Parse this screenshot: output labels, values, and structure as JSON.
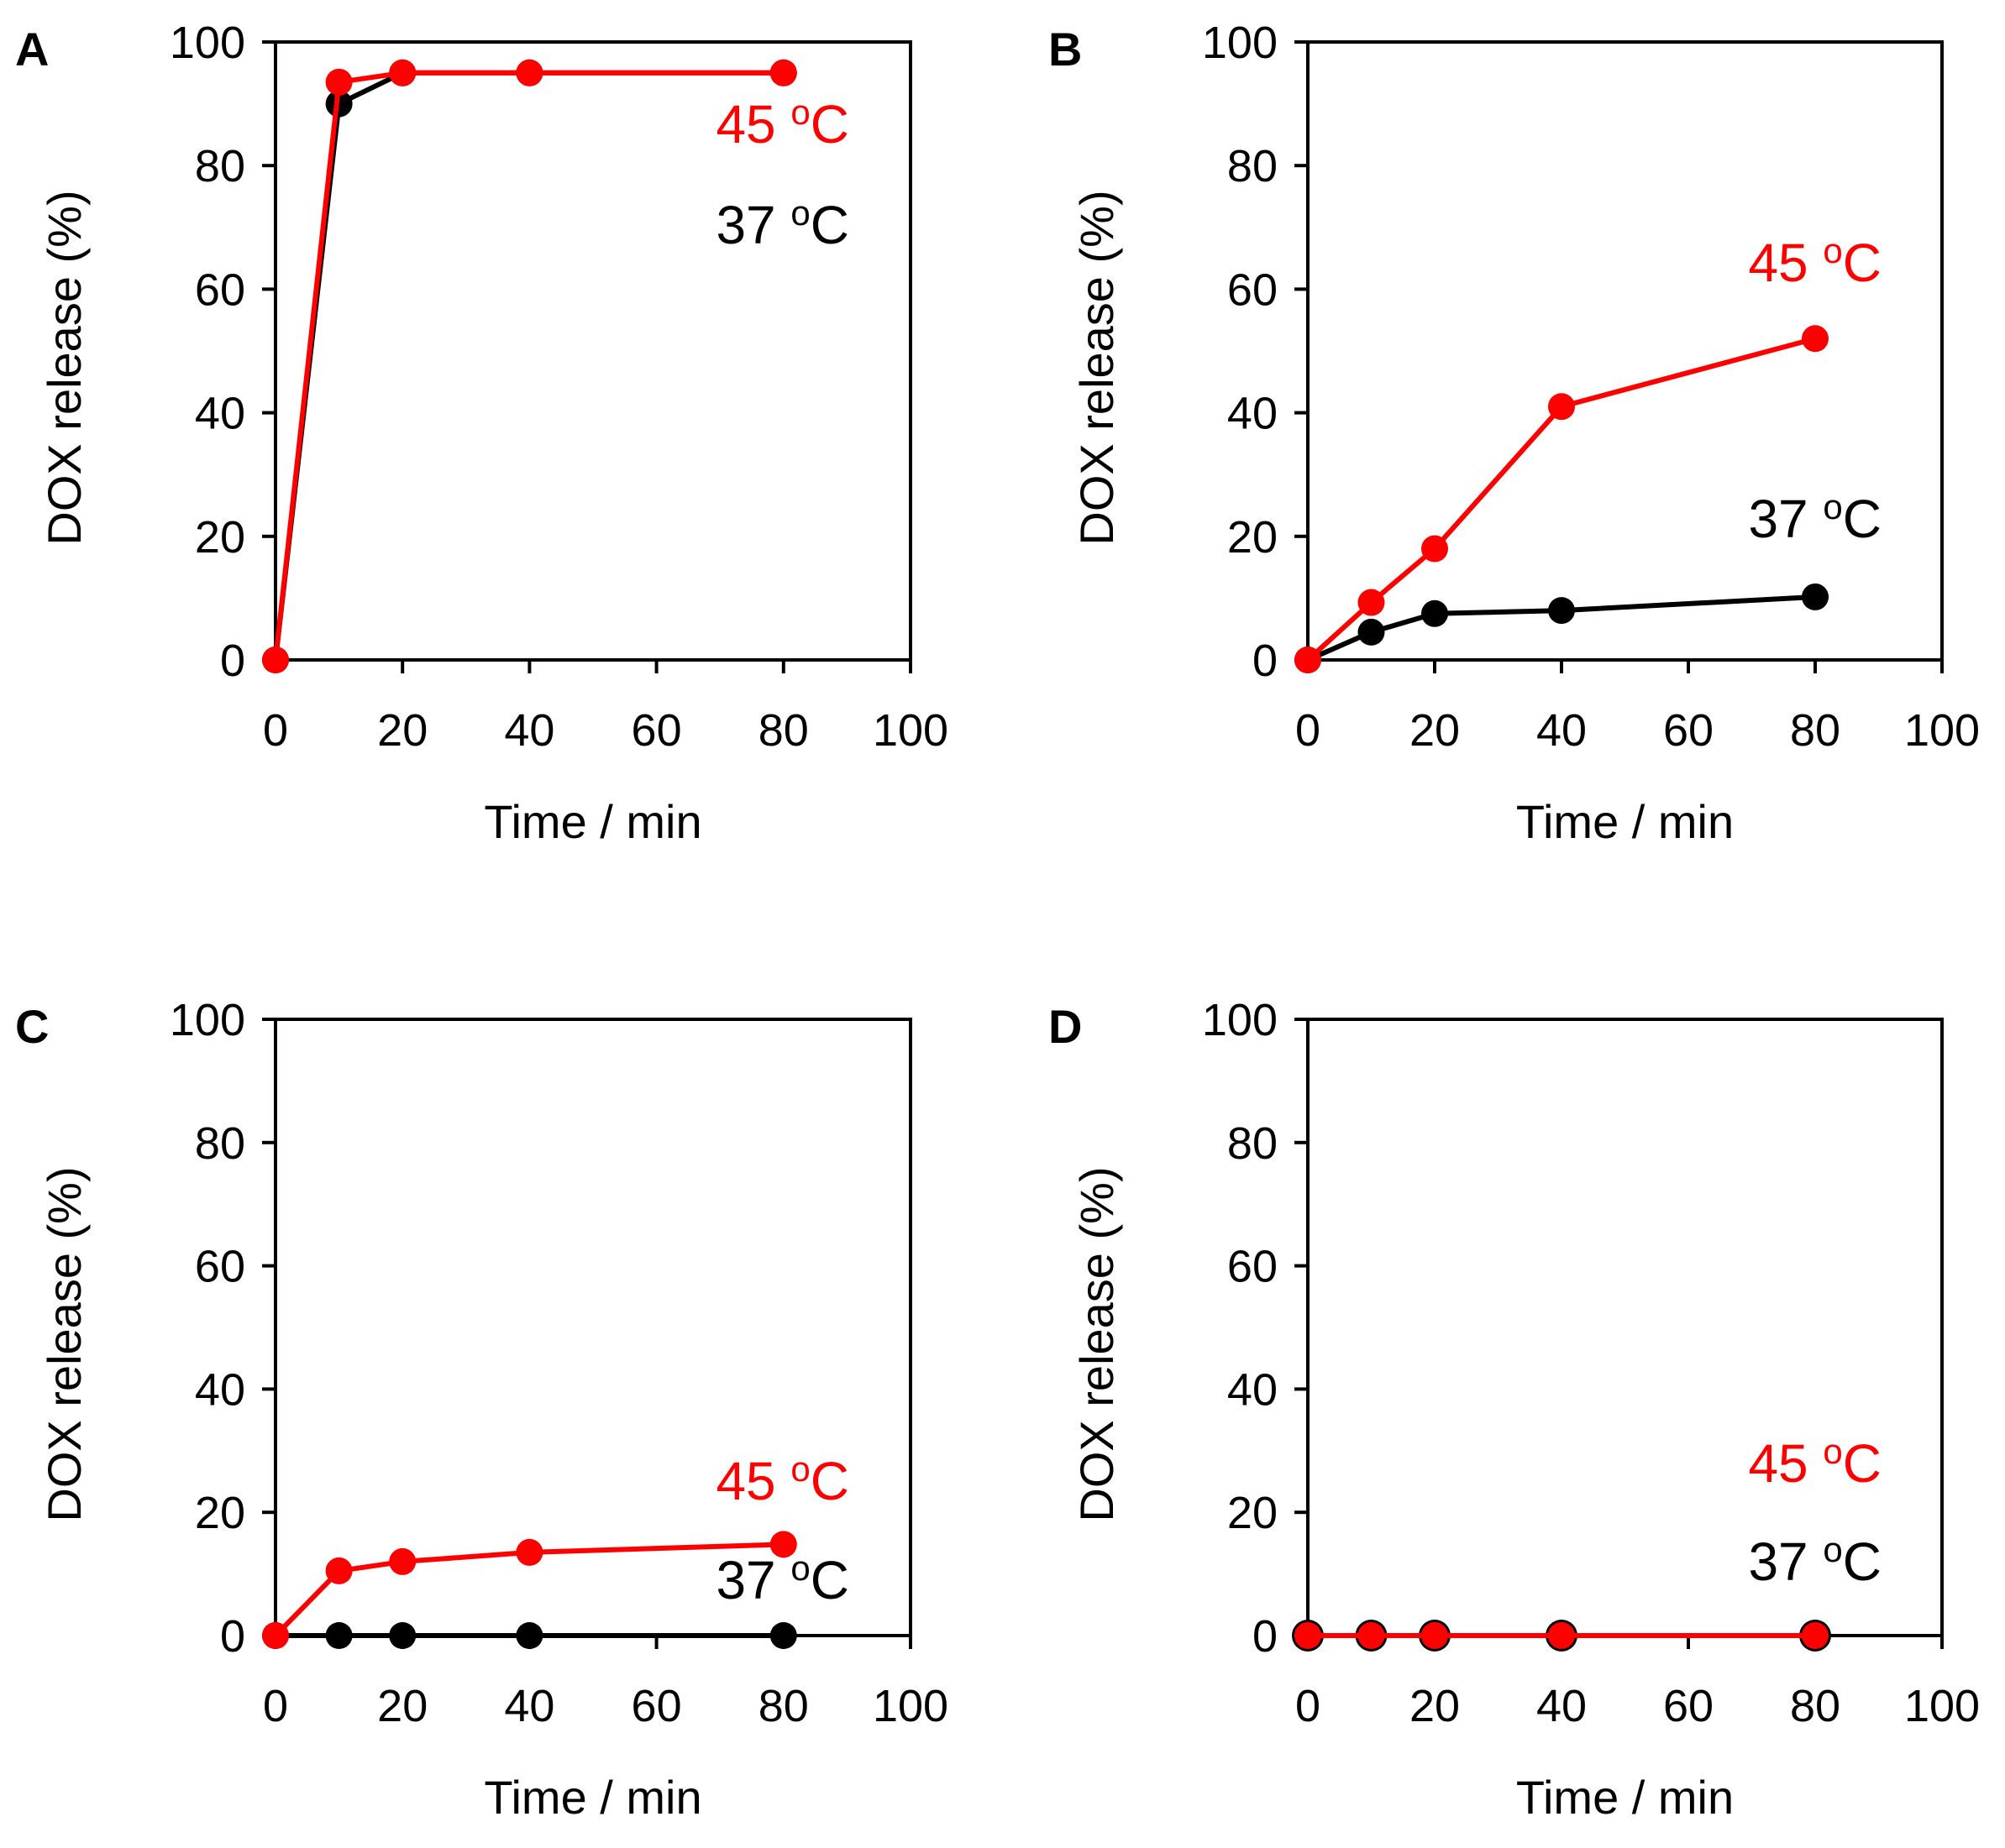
{
  "colors": {
    "series_45": "#ff0000",
    "series_37": "#000000",
    "axis": "#000000"
  },
  "chart_data": [
    {
      "type": "line",
      "panel": "A",
      "xlabel": "Time / min",
      "ylabel": "DOX release  (%)",
      "xlim": [
        0,
        100
      ],
      "ylim": [
        0,
        100
      ],
      "xticks": [
        0,
        20,
        40,
        60,
        80,
        100
      ],
      "yticks": [
        0,
        20,
        40,
        60,
        80,
        100
      ],
      "x": [
        0,
        10,
        20,
        40,
        80
      ],
      "series": [
        {
          "name": "37 oC",
          "label_main": "37 o",
          "label_sup": "o",
          "label_text": "37 ",
          "label_unit": "C",
          "values": [
            0,
            90,
            95,
            95,
            95
          ]
        },
        {
          "name": "45 oC",
          "label_text": "45 ",
          "label_sup": "o",
          "label_unit": "C",
          "values": [
            0,
            93.5,
            95,
            95,
            95
          ]
        }
      ]
    },
    {
      "type": "line",
      "panel": "B",
      "xlabel": "Time / min",
      "ylabel": "DOX release  (%)",
      "xlim": [
        0,
        100
      ],
      "ylim": [
        0,
        100
      ],
      "xticks": [
        0,
        20,
        40,
        60,
        80,
        100
      ],
      "yticks": [
        0,
        20,
        40,
        60,
        80,
        100
      ],
      "x": [
        0,
        10,
        20,
        40,
        80
      ],
      "series": [
        {
          "name": "37 oC",
          "label_text": "37 ",
          "label_sup": "o",
          "label_unit": "C",
          "values": [
            0,
            4.5,
            7.5,
            8,
            10.2
          ]
        },
        {
          "name": "45 oC",
          "label_text": "45 ",
          "label_sup": "o",
          "label_unit": "C",
          "values": [
            0,
            9.3,
            18,
            41,
            52
          ]
        }
      ]
    },
    {
      "type": "line",
      "panel": "C",
      "xlabel": "Time / min",
      "ylabel": "DOX release  (%)",
      "xlim": [
        0,
        100
      ],
      "ylim": [
        0,
        100
      ],
      "xticks": [
        0,
        20,
        40,
        60,
        80,
        100
      ],
      "yticks": [
        0,
        20,
        40,
        60,
        80,
        100
      ],
      "x": [
        0,
        10,
        20,
        40,
        80
      ],
      "series": [
        {
          "name": "37 oC",
          "label_text": "37 ",
          "label_sup": "o",
          "label_unit": "C",
          "values": [
            0,
            0,
            0,
            0,
            0
          ]
        },
        {
          "name": "45 oC",
          "label_text": "45 ",
          "label_sup": "o",
          "label_unit": "C",
          "values": [
            0,
            10.5,
            12,
            13.5,
            14.8
          ]
        }
      ]
    },
    {
      "type": "line",
      "panel": "D",
      "xlabel": "Time / min",
      "ylabel": "DOX release  (%)",
      "xlim": [
        0,
        100
      ],
      "ylim": [
        0,
        100
      ],
      "xticks": [
        0,
        20,
        40,
        60,
        80,
        100
      ],
      "yticks": [
        0,
        20,
        40,
        60,
        80,
        100
      ],
      "x": [
        0,
        10,
        20,
        40,
        80
      ],
      "series": [
        {
          "name": "37 oC",
          "label_text": "37 ",
          "label_sup": "o",
          "label_unit": "C",
          "values": [
            0,
            0,
            0,
            0,
            0
          ]
        },
        {
          "name": "45 oC",
          "label_text": "45 ",
          "label_sup": "o",
          "label_unit": "C",
          "values": [
            0,
            0,
            0,
            0,
            0
          ]
        }
      ]
    }
  ]
}
